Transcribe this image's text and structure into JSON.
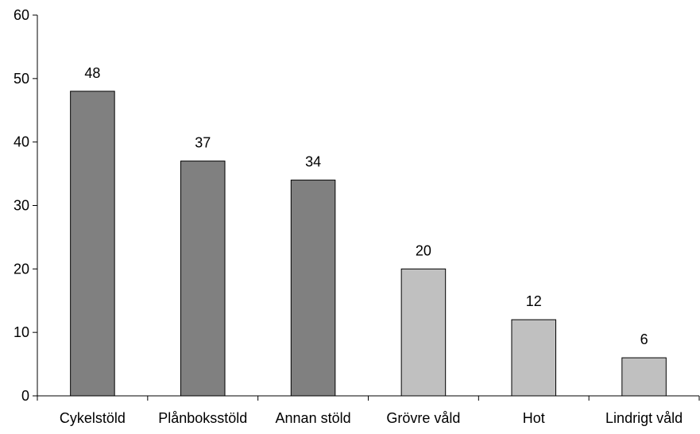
{
  "chart_data": {
    "type": "bar",
    "title": "",
    "xlabel": "",
    "ylabel": "",
    "categories": [
      "Cykelstöld",
      "Plånboksstöld",
      "Annan stöld",
      "Grövre våld",
      "Hot",
      "Lindrigt våld"
    ],
    "values": [
      48,
      37,
      34,
      20,
      12,
      6
    ],
    "data_labels": [
      "48",
      "37",
      "34",
      "20",
      "12",
      "6"
    ],
    "bar_groups": [
      "theft",
      "theft",
      "theft",
      "violence",
      "violence",
      "violence"
    ],
    "ylim": [
      0,
      60
    ],
    "y_ticks": [
      0,
      10,
      20,
      30,
      40,
      50,
      60
    ],
    "y_tick_labels": [
      "0",
      "10",
      "20",
      "30",
      "40",
      "50",
      "60"
    ],
    "grid": false,
    "legend": "none",
    "colors": {
      "theft": "#808080",
      "violence": "#c0c0c0",
      "axis": "#000000",
      "bar_outline": "#000000"
    }
  }
}
